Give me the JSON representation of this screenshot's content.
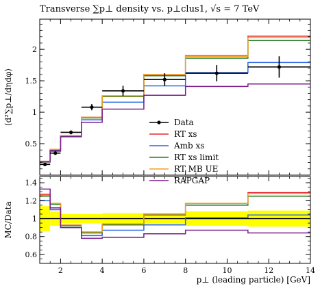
{
  "title": "Transverse ∑p⊥ density vs. p⊥clus1, √s = 7 TeV",
  "chart_data": {
    "type": "line",
    "x_edges": [
      1,
      1.5,
      2,
      3,
      4,
      6,
      8,
      11,
      14
    ],
    "xlim": [
      1,
      14
    ],
    "x_ticks": [
      2,
      4,
      6,
      8,
      10,
      12,
      14
    ],
    "xlabel": "p⊥ (leading particle) [GeV]",
    "main": {
      "ylabel": "⟨d²∑p⊥/dηdφ⟩",
      "ylim": [
        0,
        2.48
      ],
      "y_ticks": [
        0.5,
        1,
        1.5,
        2
      ],
      "data": {
        "name": "Data",
        "x": [
          1.25,
          1.75,
          2.5,
          3.5,
          5.0,
          7.0,
          9.5,
          12.5
        ],
        "y": [
          0.17,
          0.35,
          0.68,
          1.08,
          1.34,
          1.52,
          1.62,
          1.72
        ],
        "yerr": [
          0.02,
          0.03,
          0.03,
          0.05,
          0.08,
          0.1,
          0.13,
          0.17
        ],
        "color": "#000000"
      },
      "series": [
        {
          "name": "RT xs",
          "color": "#e8262b",
          "values": [
            0.21,
            0.41,
            0.63,
            0.92,
            1.26,
            1.6,
            1.9,
            2.21
          ]
        },
        {
          "name": "Amb xs",
          "color": "#2a65e8",
          "values": [
            0.2,
            0.38,
            0.61,
            0.88,
            1.16,
            1.42,
            1.63,
            1.79
          ]
        },
        {
          "name": "RT xs limit",
          "color": "#1f7a1f",
          "values": [
            0.21,
            0.4,
            0.62,
            0.91,
            1.25,
            1.58,
            1.86,
            2.14
          ]
        },
        {
          "name": "RT MB UE",
          "color": "#f2a021",
          "values": [
            0.21,
            0.41,
            0.63,
            0.92,
            1.26,
            1.6,
            1.89,
            2.19
          ]
        },
        {
          "name": "RAPGAP",
          "color": "#7a1c8c",
          "values": [
            0.22,
            0.39,
            0.61,
            0.84,
            1.05,
            1.27,
            1.41,
            1.45
          ]
        }
      ]
    },
    "ratio": {
      "ylabel": "MC/Data",
      "ylim": [
        0.5,
        1.47
      ],
      "y_ticks": [
        0.6,
        0.8,
        1,
        1.2,
        1.4
      ],
      "band": {
        "color": "#ffff00",
        "low": [
          0.86,
          0.92,
          0.95,
          0.95,
          0.94,
          0.94,
          0.92,
          0.91
        ],
        "high": [
          1.14,
          1.08,
          1.05,
          1.05,
          1.06,
          1.06,
          1.08,
          1.09
        ]
      },
      "series": [
        {
          "name": "RT xs",
          "color": "#e8262b",
          "values": [
            1.27,
            1.17,
            0.93,
            0.85,
            0.94,
            1.05,
            1.17,
            1.29
          ]
        },
        {
          "name": "Amb xs",
          "color": "#2a65e8",
          "values": [
            1.2,
            1.1,
            0.9,
            0.81,
            0.87,
            0.93,
            1.01,
            1.04
          ]
        },
        {
          "name": "RT xs limit",
          "color": "#1f7a1f",
          "values": [
            1.25,
            1.16,
            0.92,
            0.84,
            0.93,
            1.04,
            1.15,
            1.25
          ]
        },
        {
          "name": "RT MB UE",
          "color": "#f2a021",
          "values": [
            1.26,
            1.17,
            0.93,
            0.85,
            0.94,
            1.05,
            1.17,
            1.28
          ]
        },
        {
          "name": "RAPGAP",
          "color": "#7a1c8c",
          "values": [
            1.33,
            1.12,
            0.9,
            0.78,
            0.79,
            0.83,
            0.87,
            0.84
          ]
        }
      ]
    },
    "legend": {
      "position": "lower-right",
      "entries": [
        "Data",
        "RT xs",
        "Amb xs",
        "RT xs limit",
        "RT MB UE",
        "RAPGAP"
      ]
    }
  }
}
